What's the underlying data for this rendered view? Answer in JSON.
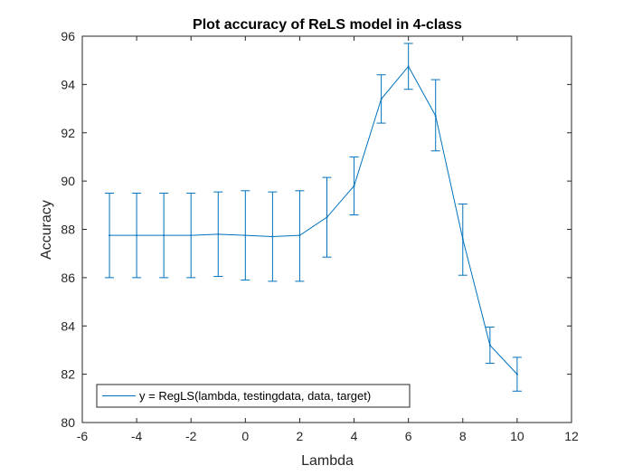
{
  "chart_data": {
    "type": "line",
    "title": "Plot accuracy of ReLS model in 4-class",
    "xlabel": "Lambda",
    "ylabel": "Accuracy",
    "xlim": [
      -6,
      12
    ],
    "ylim": [
      80,
      96
    ],
    "xticks": [
      "-6",
      "-4",
      "-2",
      "0",
      "2",
      "4",
      "6",
      "8",
      "10",
      "12"
    ],
    "yticks": [
      "80",
      "82",
      "84",
      "86",
      "88",
      "90",
      "92",
      "94",
      "96"
    ],
    "grid": false,
    "legend_position": "bottom-left",
    "series": [
      {
        "name": "y = RegLS(lambda, testingdata, data, target)",
        "color": "#0072BD",
        "error_bars": true,
        "x": [
          -5,
          -4,
          -3,
          -2,
          -1,
          0,
          1,
          2,
          3,
          4,
          5,
          6,
          7,
          8,
          9,
          10
        ],
        "y": [
          87.75,
          87.75,
          87.75,
          87.75,
          87.8,
          87.75,
          87.7,
          87.75,
          88.5,
          89.8,
          93.4,
          94.75,
          92.7,
          87.6,
          83.2,
          82.0
        ],
        "y_lower": [
          86.0,
          86.0,
          86.0,
          86.0,
          86.05,
          85.9,
          85.85,
          85.85,
          86.85,
          88.6,
          92.4,
          93.8,
          91.25,
          86.1,
          82.45,
          81.3
        ],
        "y_upper": [
          89.5,
          89.5,
          89.5,
          89.5,
          89.55,
          89.6,
          89.55,
          89.6,
          90.15,
          91.0,
          94.4,
          95.7,
          94.2,
          89.05,
          83.95,
          82.7
        ]
      }
    ]
  }
}
